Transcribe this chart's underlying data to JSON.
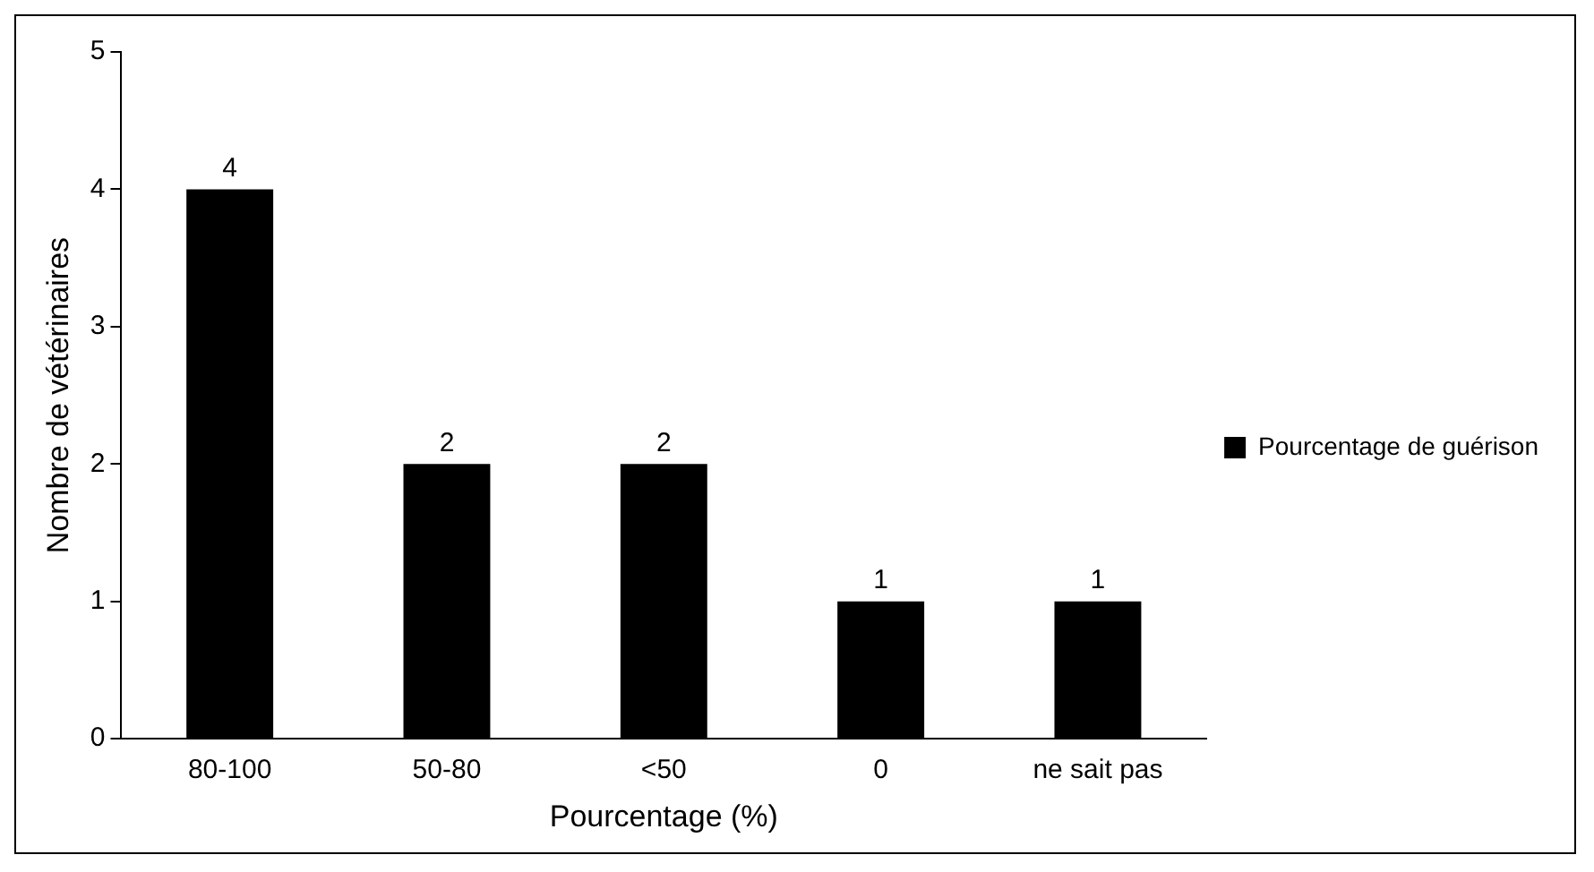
{
  "chart_data": {
    "type": "bar",
    "xlabel": "Pourcentage (%)",
    "ylabel": "Nombre de vétérinaires",
    "categories": [
      "80-100",
      "50-80",
      "<50",
      "0",
      "ne sait pas"
    ],
    "series": [
      {
        "name": "Pourcentage de guérison",
        "color": "#000000",
        "values": [
          4,
          2,
          2,
          1,
          1
        ]
      }
    ],
    "ylim": [
      0,
      5
    ],
    "yticks": [
      0,
      1,
      2,
      3,
      4,
      5
    ],
    "grid": false,
    "legend": "right",
    "data_labels": true
  }
}
